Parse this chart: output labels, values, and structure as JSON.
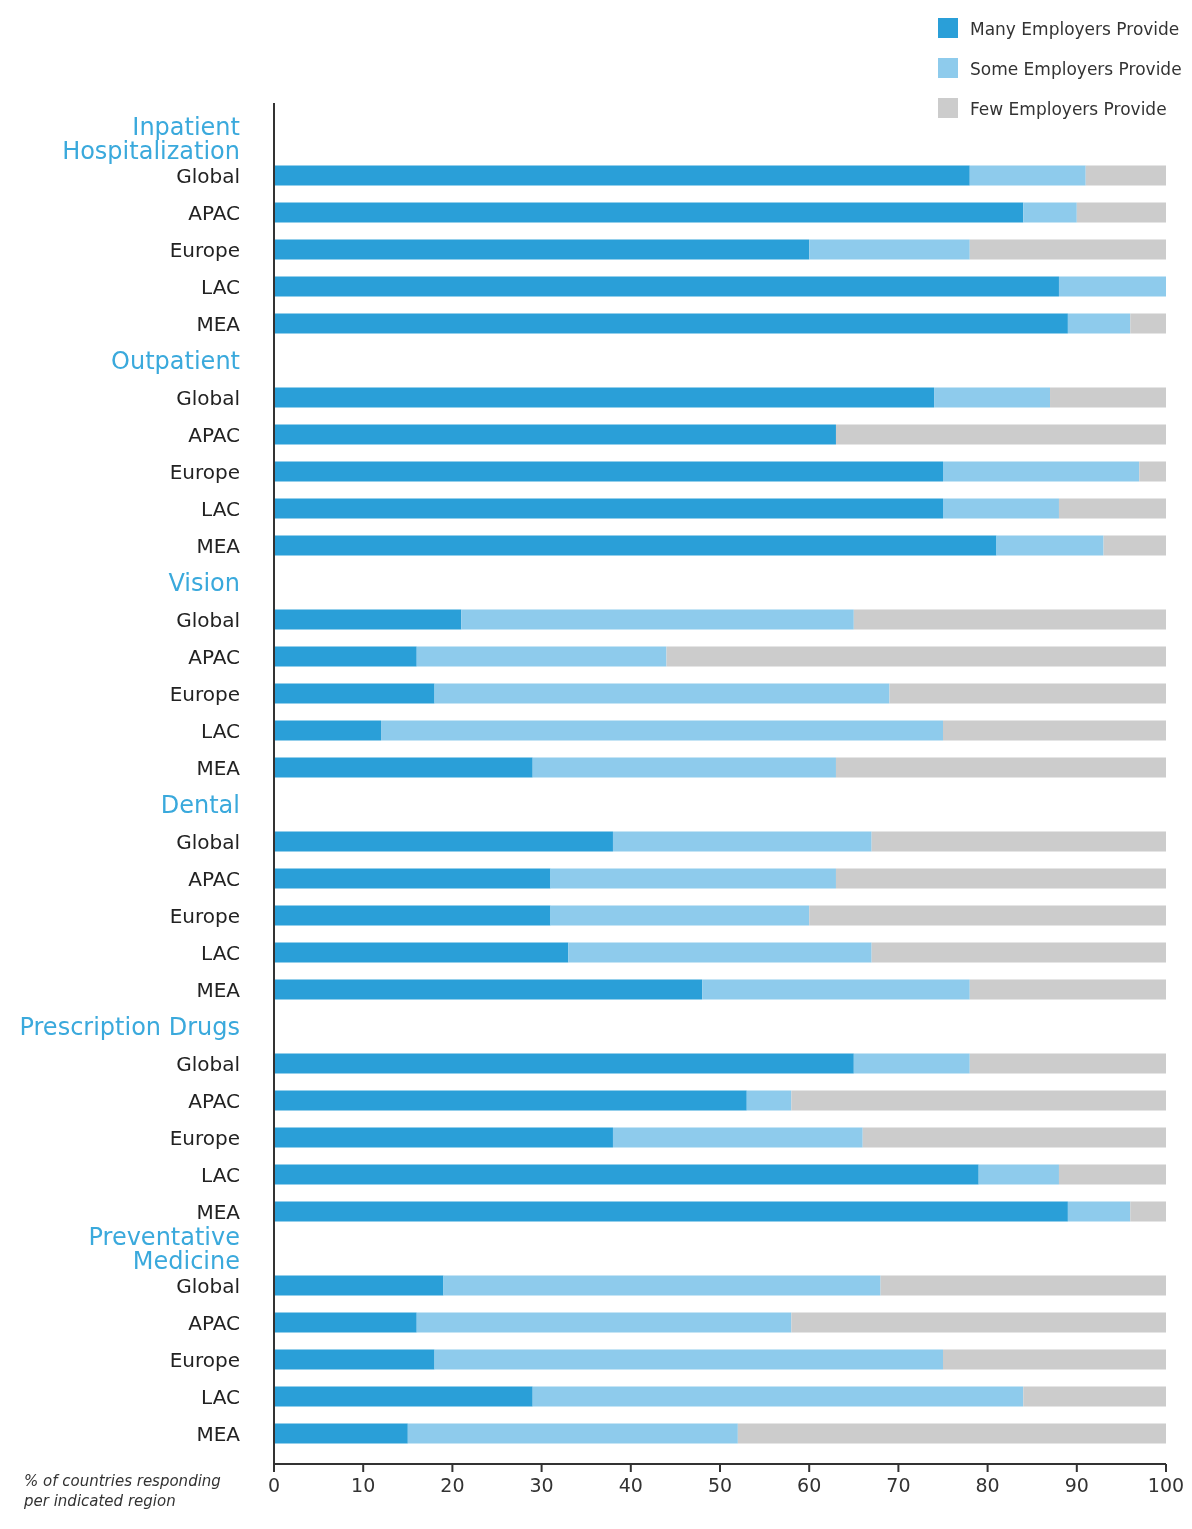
{
  "chart_data": {
    "type": "bar",
    "orientation": "horizontal",
    "stacked": true,
    "xlabel": "% of countries responding per indicated region",
    "xlim": [
      0,
      100
    ],
    "xticks": [
      0,
      10,
      20,
      30,
      40,
      50,
      60,
      70,
      80,
      90,
      100
    ],
    "grid": false,
    "legend": "top right",
    "categories": [
      "Inpatient Hospitalization",
      "Global",
      "APAC",
      "Europe",
      "LAC",
      "MEA",
      "Outpatient",
      "Global",
      "APAC",
      "Europe",
      "LAC",
      "MEA",
      "Vision",
      "Global",
      "APAC",
      "Europe",
      "LAC",
      "MEA",
      "Dental",
      "Global",
      "APAC",
      "Europe",
      "LAC",
      "MEA",
      "Prescription Drugs",
      "Global",
      "APAC",
      "Europe",
      "LAC",
      "MEA",
      "Preventative Medicine",
      "Global",
      "APAC",
      "Europe",
      "LAC",
      "MEA"
    ],
    "series": [
      {
        "name": "Many Employers Provide",
        "color": "#2a9fd8",
        "values": [
          null,
          78,
          84,
          60,
          88,
          89,
          null,
          74,
          63,
          75,
          75,
          81,
          null,
          21,
          16,
          18,
          12,
          29,
          null,
          38,
          31,
          31,
          33,
          48,
          null,
          65,
          53,
          38,
          79,
          89,
          null,
          19,
          16,
          18,
          29,
          15
        ]
      },
      {
        "name": "Some Employers Provide",
        "color": "#8ecbec",
        "values": [
          null,
          13,
          6,
          18,
          12,
          7,
          null,
          13,
          0,
          22,
          13,
          12,
          null,
          44,
          28,
          51,
          63,
          34,
          null,
          29,
          32,
          29,
          34,
          30,
          null,
          13,
          5,
          28,
          9,
          7,
          null,
          49,
          42,
          57,
          55,
          37
        ]
      },
      {
        "name": "Few Employers Provide",
        "color": "#cccccc",
        "values": [
          null,
          9,
          10,
          22,
          0,
          4,
          null,
          13,
          37,
          3,
          12,
          7,
          null,
          35,
          56,
          31,
          25,
          37,
          null,
          33,
          37,
          40,
          33,
          22,
          null,
          22,
          42,
          34,
          12,
          4,
          null,
          32,
          42,
          25,
          16,
          48
        ]
      }
    ]
  }
}
